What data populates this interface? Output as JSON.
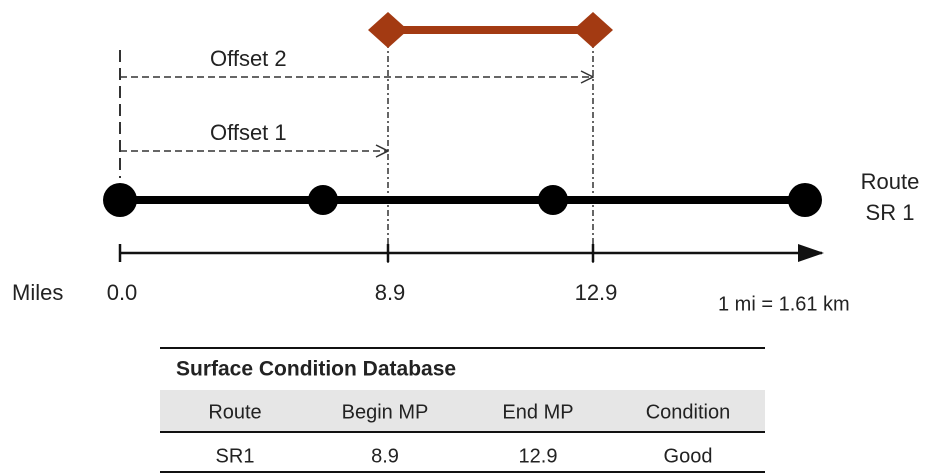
{
  "diagram": {
    "offsets": [
      "Offset 2",
      "Offset 1"
    ],
    "route_label": [
      "Route",
      "SR 1"
    ],
    "axis_label": "Miles",
    "mileposts": [
      "0.0",
      "8.9",
      "12.9"
    ],
    "conversion": "1 mi = 1.61 km"
  },
  "table": {
    "title": "Surface Condition Database",
    "header": [
      "Route",
      "Begin MP",
      "End MP",
      "Condition"
    ],
    "rows": [
      [
        "SR1",
        "8.9",
        "12.9",
        "Good"
      ]
    ]
  }
}
